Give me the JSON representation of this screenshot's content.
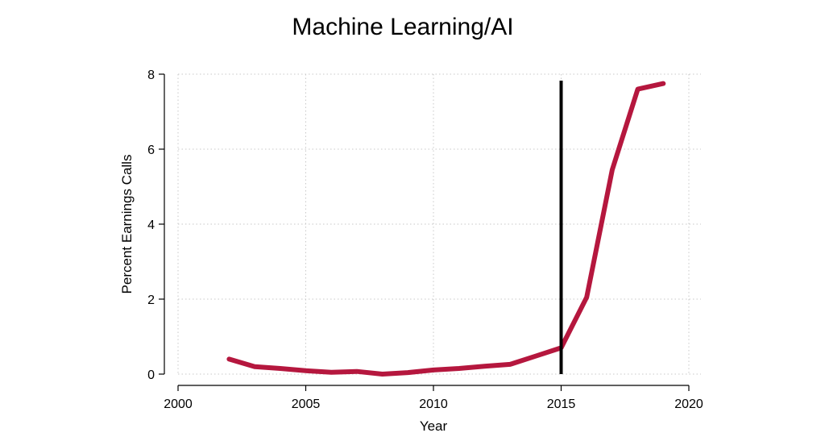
{
  "chart_data": {
    "type": "line",
    "title": "Machine Learning/AI",
    "xlabel": "Year",
    "ylabel": "Percent Earnings Calls",
    "xlim": [
      2000,
      2020
    ],
    "ylim": [
      0,
      8
    ],
    "x_ticks": [
      2000,
      2005,
      2010,
      2015,
      2020
    ],
    "y_ticks": [
      0,
      2,
      4,
      6,
      8
    ],
    "grid": "dotted",
    "legend": "none",
    "vertical_line": {
      "x": 2015,
      "color": "#000000"
    },
    "series": [
      {
        "color": "#B5173E",
        "x": [
          2002,
          2003,
          2004,
          2005,
          2006,
          2007,
          2008,
          2009,
          2010,
          2011,
          2012,
          2013,
          2014,
          2015,
          2016,
          2017,
          2018,
          2019
        ],
        "y": [
          0.4,
          0.2,
          0.15,
          0.09,
          0.05,
          0.07,
          0.0,
          0.04,
          0.11,
          0.15,
          0.21,
          0.26,
          0.48,
          0.7,
          2.05,
          5.45,
          7.6,
          7.75
        ]
      }
    ]
  }
}
